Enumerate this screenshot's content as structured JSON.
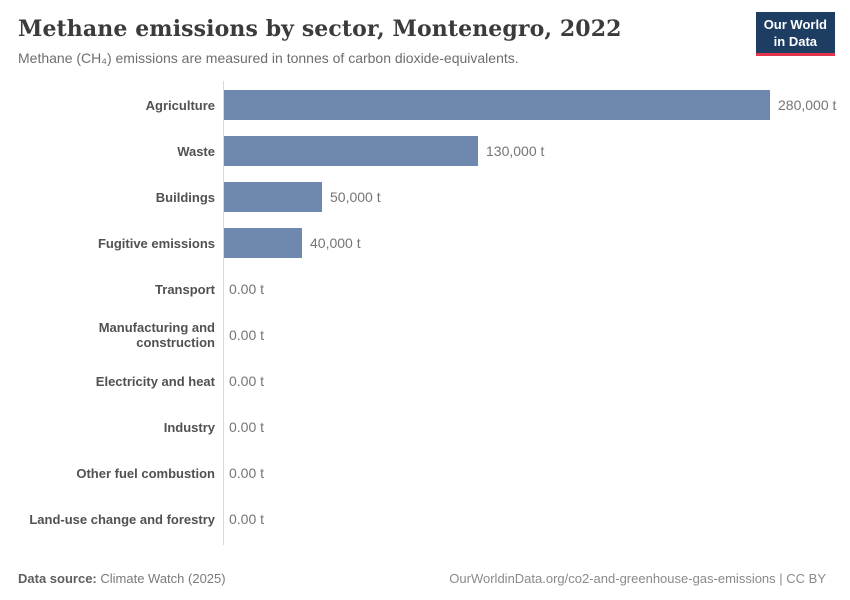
{
  "header": {
    "title": "Methane emissions by sector, Montenegro, 2022",
    "subtitle": "Methane (CH₄) emissions are measured in tonnes of carbon dioxide-equivalents.",
    "logo": {
      "line1": "Our World",
      "line2": "in Data"
    }
  },
  "chart_data": {
    "type": "bar",
    "orientation": "horizontal",
    "title": "Methane emissions by sector, Montenegro, 2022",
    "unit": "tonnes of CO₂-equivalents",
    "categories": [
      "Agriculture",
      "Waste",
      "Buildings",
      "Fugitive emissions",
      "Transport",
      "Manufacturing and construction",
      "Electricity and heat",
      "Industry",
      "Other fuel combustion",
      "Land-use change and forestry"
    ],
    "values": [
      280000,
      130000,
      50000,
      40000,
      0,
      0,
      0,
      0,
      0,
      0
    ],
    "value_labels": [
      "280,000 t",
      "130,000 t",
      "50,000 t",
      "40,000 t",
      "0.00 t",
      "0.00 t",
      "0.00 t",
      "0.00 t",
      "0.00 t",
      "0.00 t"
    ],
    "xlim": [
      0,
      280000
    ],
    "grid": false,
    "legend": false
  },
  "colors": {
    "bar": "#6e88b0",
    "logo_bg": "#1d3d63",
    "logo_underline": "#e0354d"
  },
  "footer": {
    "datasource_label": "Data source:",
    "datasource_value": " Climate Watch (2025)",
    "attribution": "OurWorldinData.org/co2-and-greenhouse-gas-emissions | CC BY"
  }
}
